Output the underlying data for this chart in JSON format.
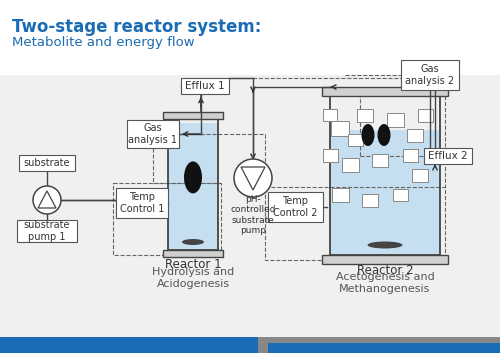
{
  "title_bold": "Two-stage reactor system:",
  "title_sub": "Metabolite and energy flow",
  "bg_color": "#f8f8f8",
  "title_color": "#1a6cb5",
  "sub_color": "#1a6cb5",
  "bar_blue": "#1a6cb5",
  "bar_gray": "#aaaaaa",
  "reactor1_label": "Reactor 1",
  "reactor2_label": "Reactor 2",
  "r1_sub": "Hydrolysis and\nAcidogenesis",
  "r2_sub": "Acetogenesis and\nMethanogenesis",
  "label_efflux1": "Efflux 1",
  "label_efflux2": "Efflux 2",
  "label_gas1": "Gas\nanalysis 1",
  "label_gas2": "Gas\nanalysis 2",
  "label_substrate": "substrate",
  "label_pump1": "substrate\npump 1",
  "label_temp1": "Temp\nControl 1",
  "label_temp2": "Temp\nControl 2",
  "label_ph_pump": "pH-\ncontrolled\nsubstrate\npump",
  "liquid_color": "#c5dff0",
  "line_color": "#444444",
  "box_ec": "#555555",
  "dashed_color": "#666666",
  "arrow_color": "#333333",
  "white": "#ffffff"
}
